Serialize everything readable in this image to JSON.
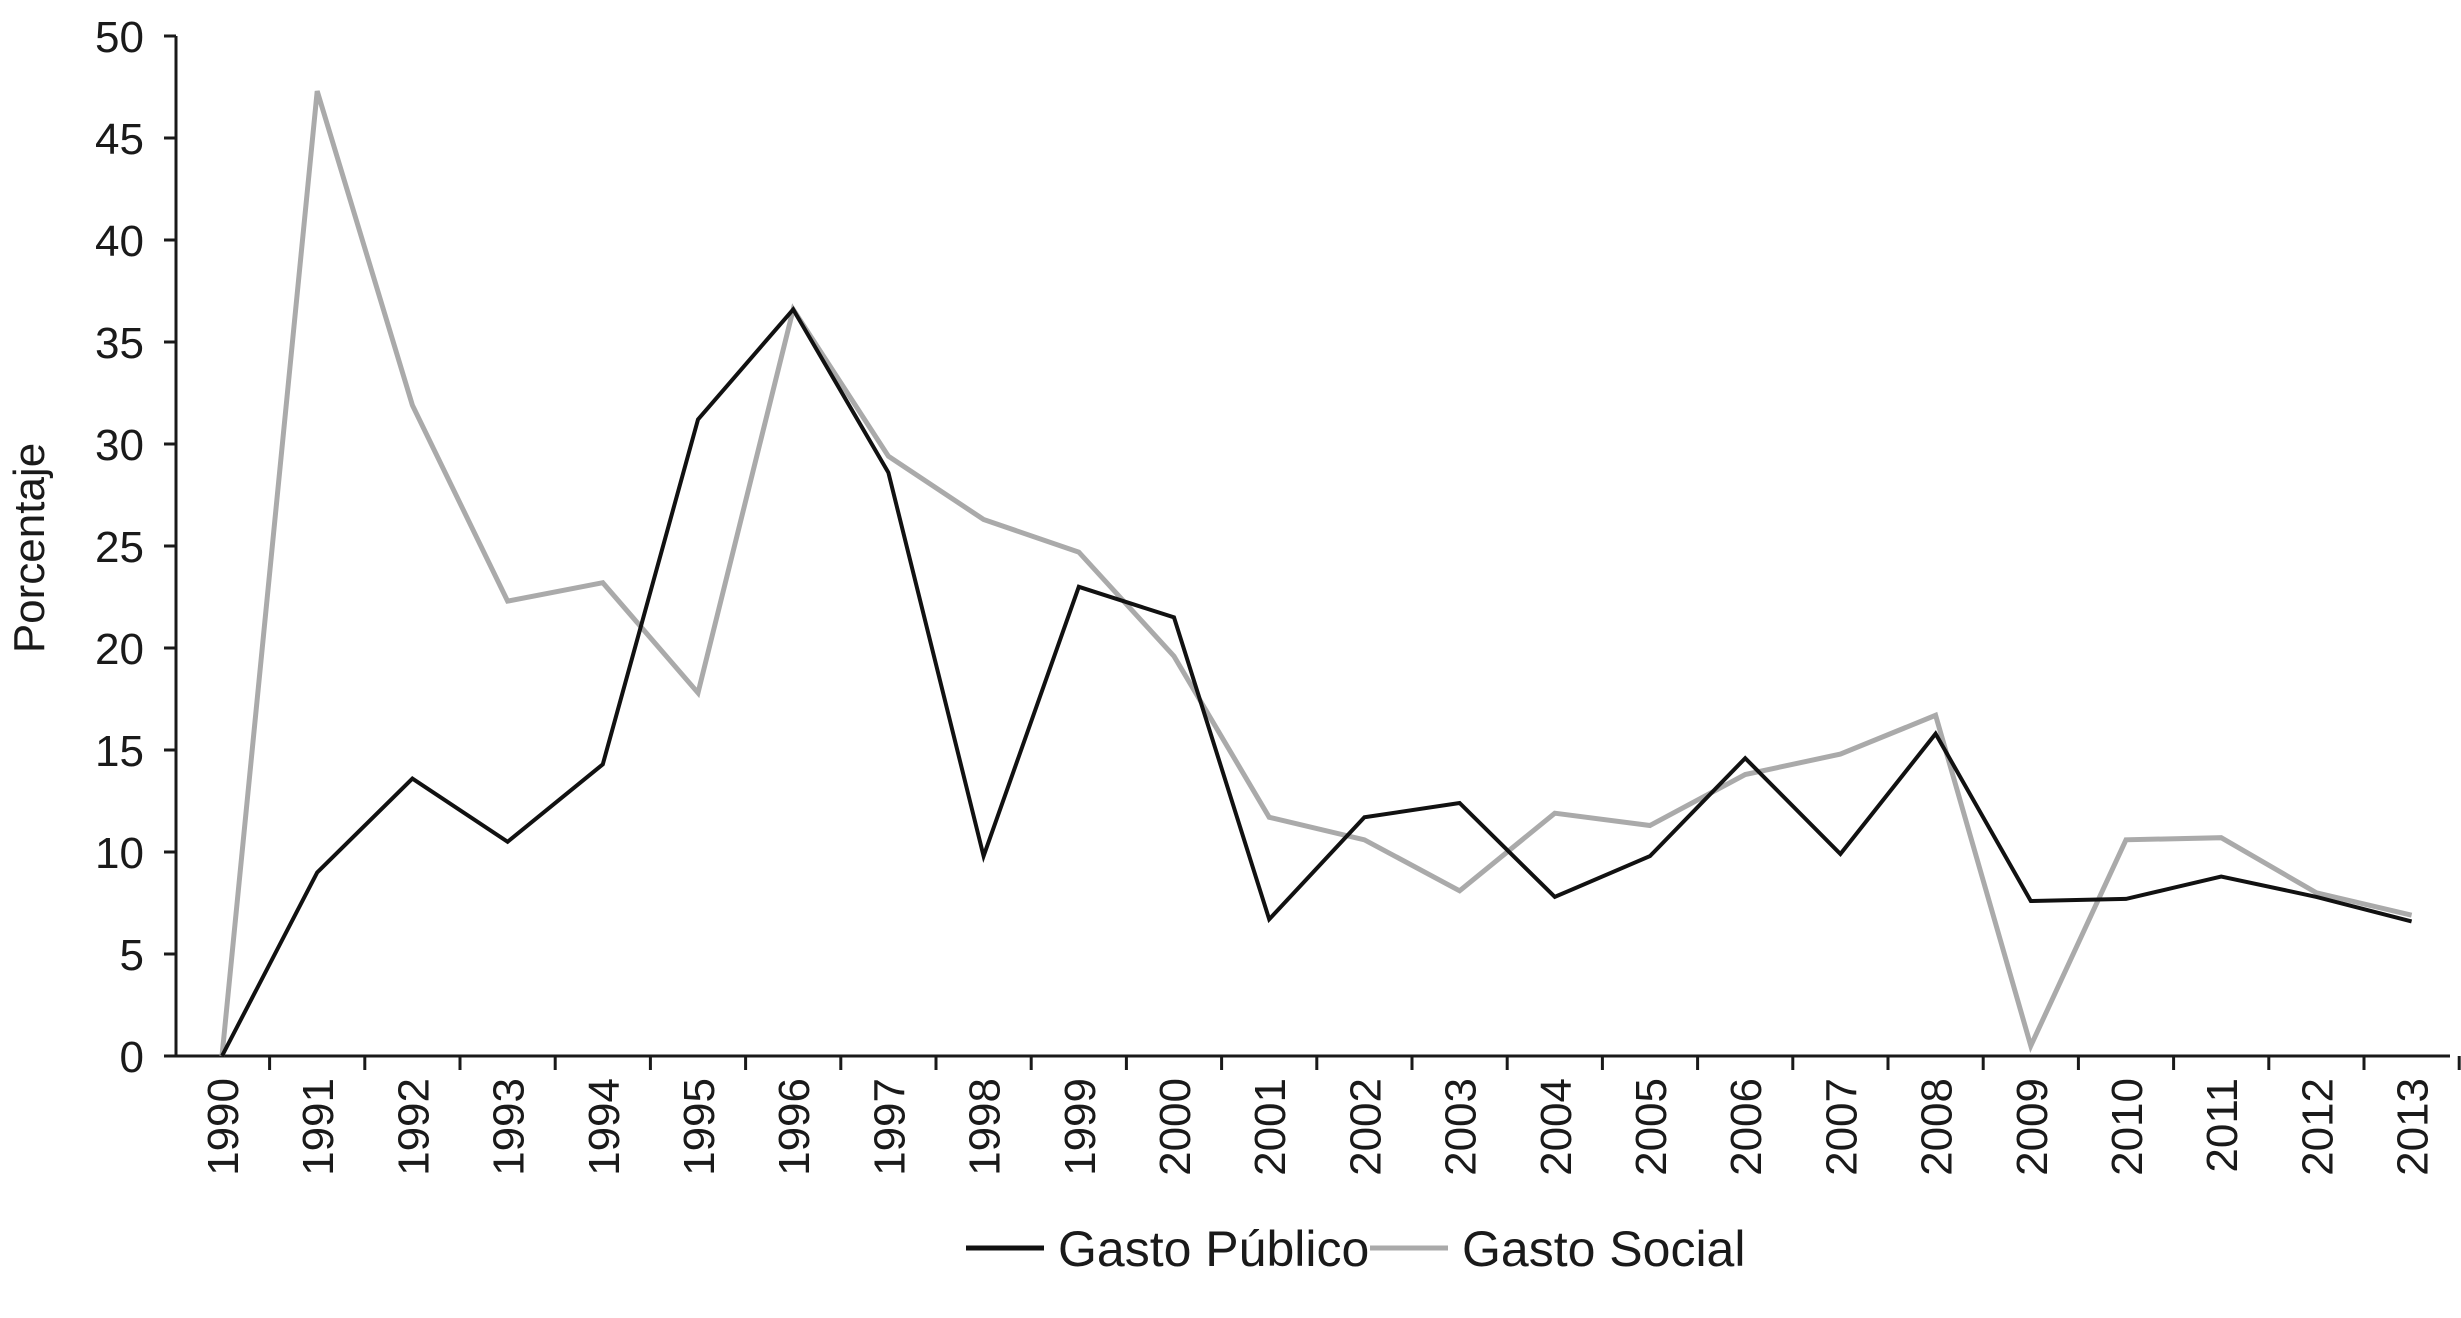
{
  "chart_data": {
    "type": "line",
    "ylabel": "Porcentaje",
    "xlabel": "",
    "ylim": [
      0,
      50
    ],
    "yticks": [
      0,
      5,
      10,
      15,
      20,
      25,
      30,
      35,
      40,
      45,
      50
    ],
    "categories": [
      "1990",
      "1991",
      "1992",
      "1993",
      "1994",
      "1995",
      "1996",
      "1997",
      "1998",
      "1999",
      "2000",
      "2001",
      "2002",
      "2003",
      "2004",
      "2005",
      "2006",
      "2007",
      "2008",
      "2009",
      "2010",
      "2011",
      "2012",
      "2013"
    ],
    "grid": false,
    "legend_position": "bottom",
    "series": [
      {
        "name": "Gasto Público",
        "color": "#111111",
        "values": [
          0,
          9,
          13.6,
          10.5,
          14.3,
          31.2,
          36.6,
          28.6,
          9.8,
          23,
          21.5,
          6.7,
          11.7,
          12.4,
          7.8,
          9.8,
          14.6,
          9.9,
          15.8,
          7.6,
          7.7,
          8.8,
          7.8,
          6.6
        ]
      },
      {
        "name": "Gasto Social",
        "color": "#aaaaaa",
        "values": [
          0,
          47.3,
          31.9,
          22.3,
          23.2,
          17.8,
          36.6,
          29.4,
          26.3,
          24.7,
          19.6,
          11.7,
          10.6,
          8.1,
          11.9,
          11.3,
          13.8,
          14.8,
          16.7,
          0.5,
          10.6,
          10.7,
          8,
          6.9
        ]
      }
    ]
  }
}
